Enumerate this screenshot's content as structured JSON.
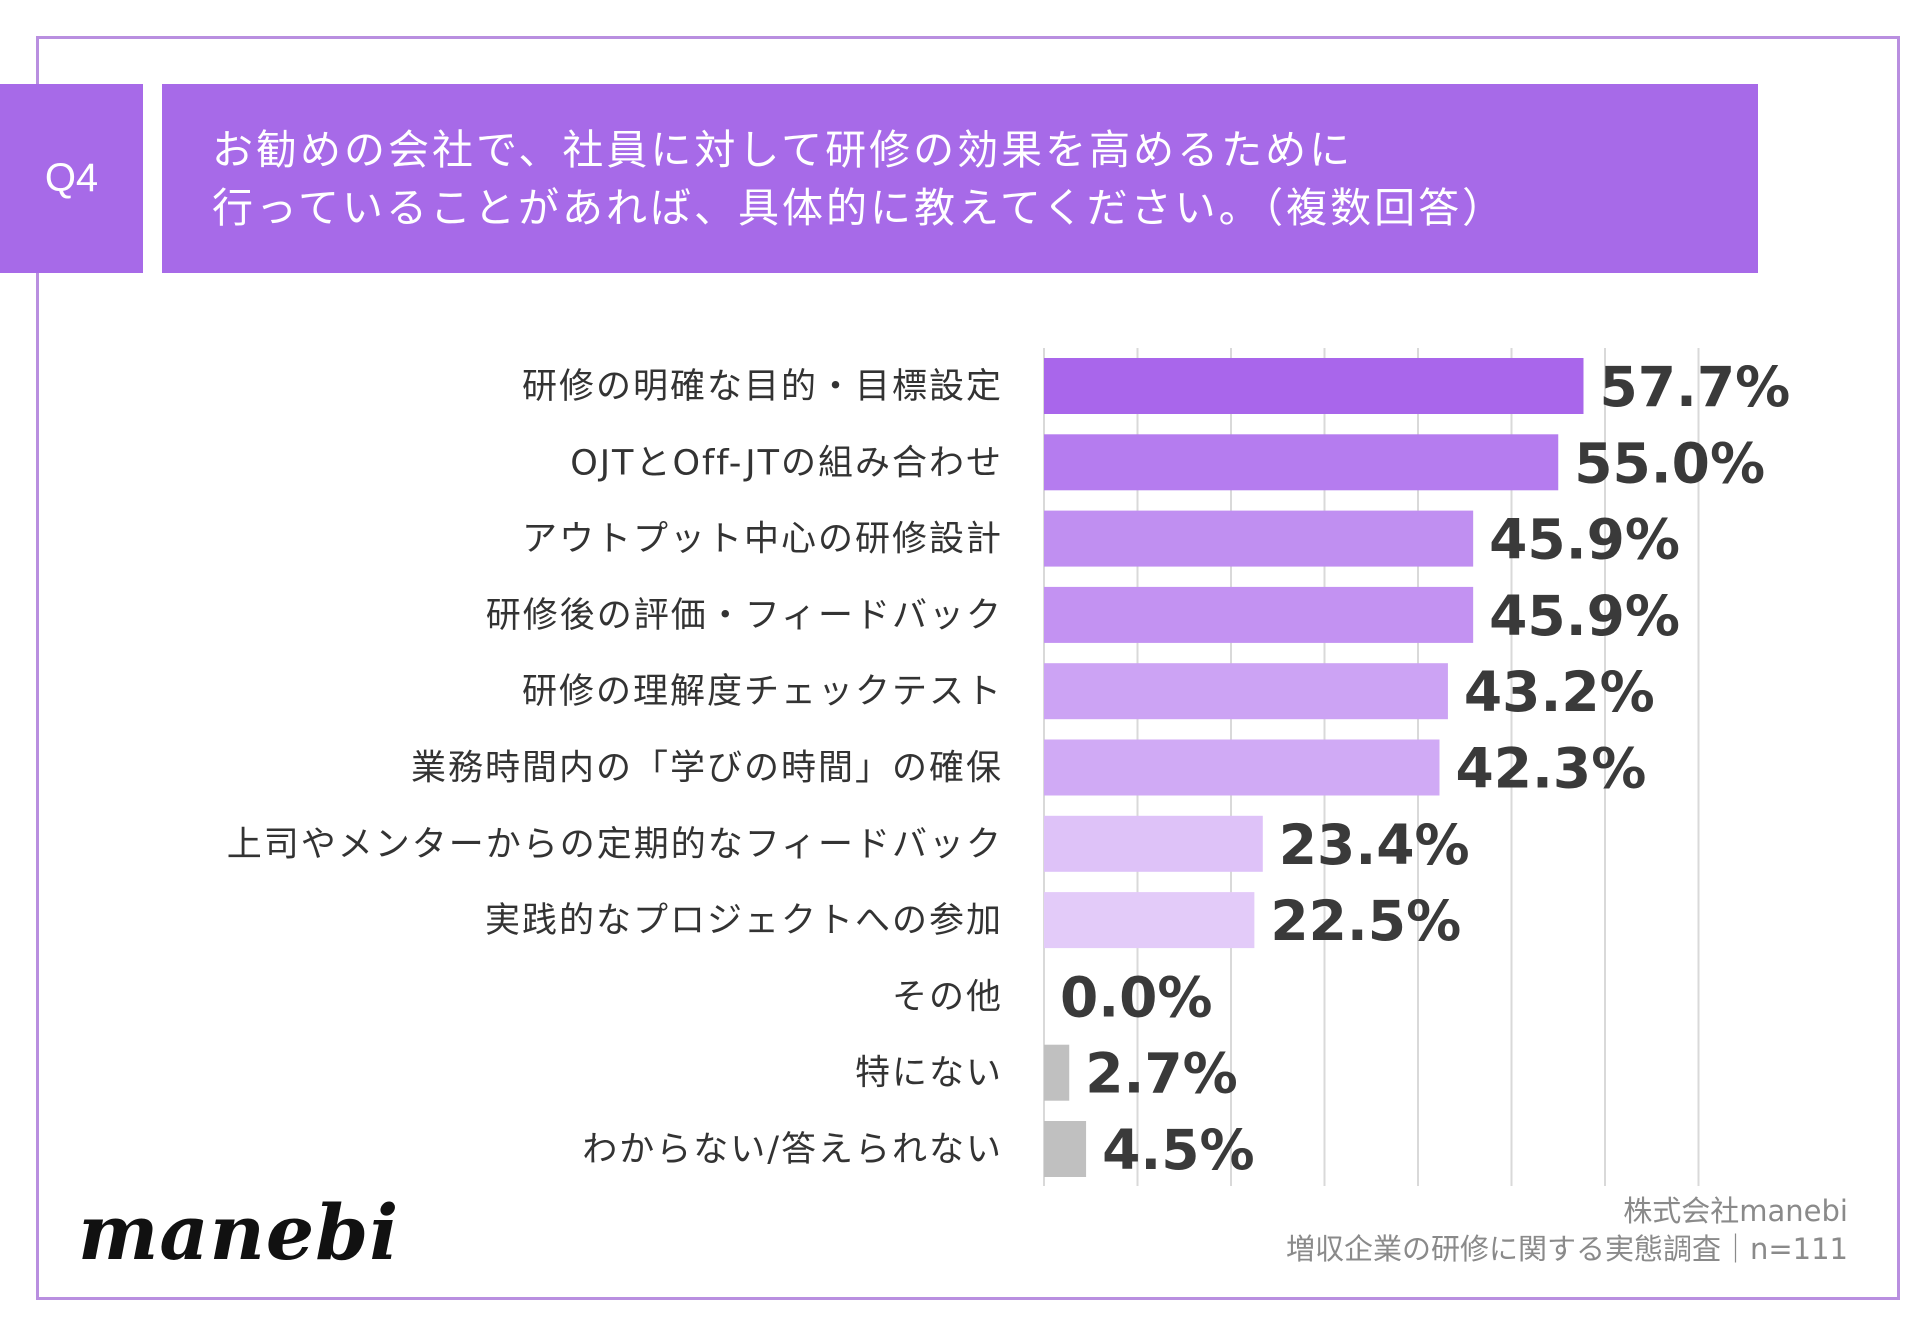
{
  "question": {
    "badge": "Q4",
    "title_line1": "お勧めの会社で、社員に対して研修の効果を高めるために",
    "title_line2": "行っていることがあれば、具体的に教えてください。（複数回答）"
  },
  "chart_data": {
    "type": "bar",
    "orientation": "horizontal",
    "title": "お勧めの会社で、社員に対して研修の効果を高めるために行っていることがあれば、具体的に教えてください。（複数回答）",
    "categories": [
      "研修の明確な目的・目標設定",
      "OJTとOff-JTの組み合わせ",
      "アウトプット中心の研修設計",
      "研修後の評価・フィードバック",
      "研修の理解度チェックテスト",
      "業務時間内の「学びの時間」の確保",
      "上司やメンターからの定期的なフィードバック",
      "実践的なプロジェクトへの参加",
      "その他",
      "特にない",
      "わからない/答えられない"
    ],
    "values": [
      57.7,
      55.0,
      45.9,
      45.9,
      43.2,
      42.3,
      23.4,
      22.5,
      0.0,
      2.7,
      4.5
    ],
    "value_labels": [
      "57.7%",
      "55.0%",
      "45.9%",
      "45.9%",
      "43.2%",
      "42.3%",
      "23.4%",
      "22.5%",
      "0.0%",
      "2.7%",
      "4.5%"
    ],
    "bar_colors": [
      "#a966eb",
      "#b57cef",
      "#c08ff1",
      "#c392f2",
      "#cca3f4",
      "#d0aaf5",
      "#dec2f8",
      "#e3cbf9",
      "#c0c0c0",
      "#c0c0c0",
      "#c0c0c0"
    ],
    "xlim": [
      0,
      70
    ],
    "gridlines": [
      0,
      10,
      20,
      30,
      40,
      50,
      60,
      70
    ],
    "grid": true,
    "xlabel": "",
    "ylabel": ""
  },
  "brand": {
    "logo_text": "manebi"
  },
  "footer": {
    "company": "株式会社manebi",
    "survey": "増収企業の研修に関する実態調査｜n=111"
  }
}
